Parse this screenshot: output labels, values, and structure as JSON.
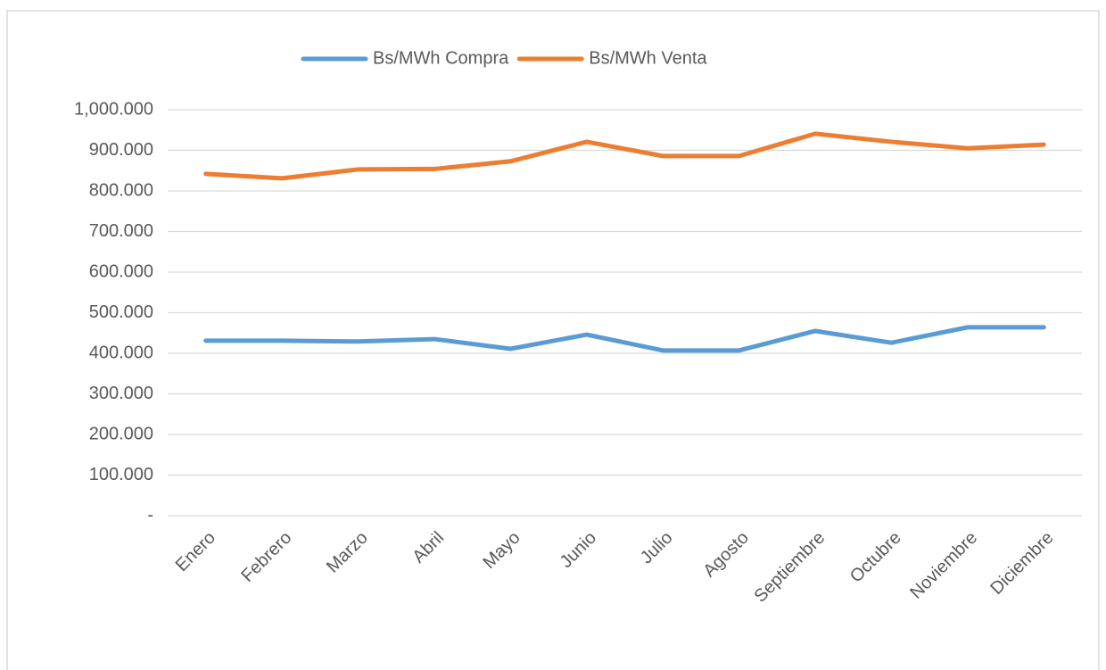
{
  "chart_data": {
    "type": "line",
    "categories": [
      "Enero",
      "Febrero",
      "Marzo",
      "Abril",
      "Mayo",
      "Junio",
      "Julio",
      "Agosto",
      "Septiembre",
      "Octubre",
      "Noviembre",
      "Diciembre"
    ],
    "series": [
      {
        "name": "Bs/MWh Compra",
        "color": "#5b9bd5",
        "values": [
          431,
          431,
          429,
          435,
          411,
          446,
          407,
          407,
          455,
          426,
          464,
          464
        ]
      },
      {
        "name": "Bs/MWh Venta",
        "color": "#ed7d31",
        "values": [
          842,
          831,
          853,
          854,
          873,
          921,
          886,
          886,
          941,
          921,
          905,
          914
        ]
      }
    ],
    "ylim": [
      0,
      1000
    ],
    "yticks": [
      {
        "value": 0,
        "label": "-"
      },
      {
        "value": 100,
        "label": "100.000"
      },
      {
        "value": 200,
        "label": "200.000"
      },
      {
        "value": 300,
        "label": "300.000"
      },
      {
        "value": 400,
        "label": "400.000"
      },
      {
        "value": 500,
        "label": "500.000"
      },
      {
        "value": 600,
        "label": "600.000"
      },
      {
        "value": 700,
        "label": "700.000"
      },
      {
        "value": 800,
        "label": "800.000"
      },
      {
        "value": 900,
        "label": "900.000"
      },
      {
        "value": 1000,
        "label": "1,000.000"
      }
    ],
    "grid": true,
    "legend": "top"
  }
}
